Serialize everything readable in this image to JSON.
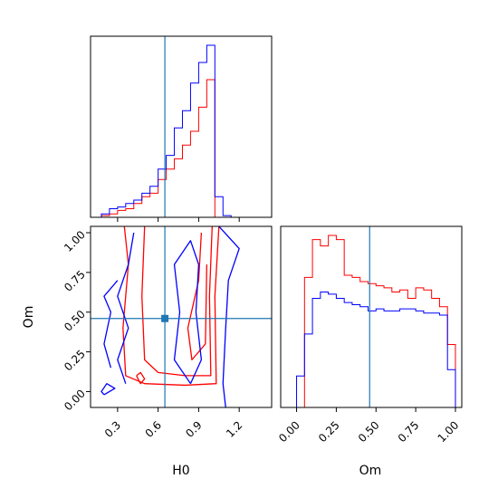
{
  "colors": {
    "red": "#ff0000",
    "blue": "#0000ff",
    "truth": "#1f77b4"
  },
  "chart_data": [
    {
      "type": "histogram",
      "panel": "H0 marginal",
      "xlabel": "",
      "xlim": [
        0.1,
        1.44
      ],
      "xticks": [
        0.3,
        0.6,
        0.9,
        1.2
      ],
      "truth_x": 0.65,
      "bins": [
        0.12,
        0.18,
        0.24,
        0.3,
        0.36,
        0.42,
        0.48,
        0.54,
        0.6,
        0.66,
        0.72,
        0.78,
        0.84,
        0.9,
        0.96,
        1.02,
        1.08,
        1.14,
        1.2
      ],
      "series": [
        {
          "color": "red",
          "heights": [
            0.0,
            0.01,
            0.02,
            0.04,
            0.05,
            0.08,
            0.12,
            0.14,
            0.22,
            0.28,
            0.34,
            0.42,
            0.5,
            0.64,
            0.8,
            0.0,
            0.0,
            0.0
          ]
        },
        {
          "color": "blue",
          "heights": [
            0.0,
            0.02,
            0.05,
            0.06,
            0.08,
            0.1,
            0.14,
            0.18,
            0.28,
            0.36,
            0.52,
            0.62,
            0.78,
            0.9,
            1.0,
            0.12,
            0.01,
            0.0
          ]
        }
      ]
    },
    {
      "type": "contour",
      "panel": "H0 vs Om",
      "xlabel": "H0",
      "ylabel": "Om",
      "xlim": [
        0.1,
        1.44
      ],
      "ylim": [
        -0.1,
        1.04
      ],
      "xticks": [
        0.3,
        0.6,
        0.9,
        1.2
      ],
      "xtick_labels": [
        "0.3",
        "0.6",
        "0.9",
        "1.2"
      ],
      "yticks": [
        0.0,
        0.25,
        0.5,
        0.75,
        1.0
      ],
      "ytick_labels": [
        "0.00",
        "0.25",
        "0.50",
        "0.75",
        "1.00"
      ],
      "truth": [
        0.65,
        0.46
      ],
      "series": [
        {
          "color": "red",
          "contours": [
            [
              [
                1.05,
                1.04
              ],
              [
                1.02,
                0.6
              ],
              [
                1.03,
                0.05
              ],
              [
                0.8,
                0.04
              ],
              [
                0.5,
                0.05
              ],
              [
                0.36,
                0.1
              ],
              [
                0.34,
                0.4
              ],
              [
                0.38,
                0.8
              ],
              [
                0.35,
                1.04
              ]
            ],
            [
              [
                1.0,
                1.04
              ],
              [
                0.98,
                0.6
              ],
              [
                0.99,
                0.1
              ],
              [
                0.8,
                0.1
              ],
              [
                0.6,
                0.12
              ],
              [
                0.5,
                0.2
              ],
              [
                0.48,
                0.6
              ],
              [
                0.5,
                1.04
              ]
            ],
            [
              [
                0.92,
                1.0
              ],
              [
                0.9,
                0.7
              ],
              [
                0.82,
                0.4
              ],
              [
                0.85,
                0.2
              ],
              [
                0.95,
                0.3
              ],
              [
                0.96,
                0.8
              ]
            ],
            [
              [
                0.44,
                0.1
              ],
              [
                0.47,
                0.05
              ],
              [
                0.5,
                0.08
              ],
              [
                0.47,
                0.12
              ],
              [
                0.44,
                0.1
              ]
            ]
          ]
        },
        {
          "color": "blue",
          "contours": [
            [
              [
                1.05,
                1.04
              ],
              [
                1.2,
                0.9
              ],
              [
                1.12,
                0.7
              ],
              [
                1.1,
                0.4
              ],
              [
                1.08,
                0.05
              ],
              [
                1.1,
                -0.1
              ]
            ],
            [
              [
                0.84,
                0.05
              ],
              [
                0.72,
                0.2
              ],
              [
                0.76,
                0.5
              ],
              [
                0.72,
                0.8
              ],
              [
                0.84,
                0.95
              ],
              [
                0.9,
                0.8
              ],
              [
                0.88,
                0.5
              ],
              [
                0.92,
                0.2
              ],
              [
                0.84,
                0.05
              ]
            ],
            [
              [
                0.42,
                1.0
              ],
              [
                0.38,
                0.8
              ],
              [
                0.3,
                0.6
              ],
              [
                0.38,
                0.4
              ],
              [
                0.3,
                0.2
              ],
              [
                0.36,
                0.05
              ]
            ],
            [
              [
                0.3,
                0.7
              ],
              [
                0.2,
                0.6
              ],
              [
                0.25,
                0.5
              ],
              [
                0.2,
                0.3
              ],
              [
                0.25,
                0.15
              ]
            ],
            [
              [
                0.2,
                -0.02
              ],
              [
                0.28,
                0.02
              ],
              [
                0.22,
                0.05
              ],
              [
                0.18,
                0.0
              ],
              [
                0.2,
                -0.02
              ]
            ]
          ]
        }
      ]
    },
    {
      "type": "histogram",
      "panel": "Om marginal",
      "xlabel": "Om",
      "xlim": [
        -0.1,
        1.04
      ],
      "xticks": [
        0.0,
        0.25,
        0.5,
        0.75,
        1.0
      ],
      "xtick_labels": [
        "0.00",
        "0.25",
        "0.50",
        "0.75",
        "1.00"
      ],
      "truth_x": 0.46,
      "bins": [
        -0.05,
        0.0,
        0.05,
        0.1,
        0.15,
        0.2,
        0.25,
        0.3,
        0.35,
        0.4,
        0.45,
        0.5,
        0.55,
        0.6,
        0.65,
        0.7,
        0.75,
        0.8,
        0.85,
        0.9,
        0.95,
        1.0
      ],
      "series": [
        {
          "color": "red",
          "heights": [
            0.0,
            0.0,
            0.62,
            0.8,
            0.77,
            0.82,
            0.8,
            0.63,
            0.62,
            0.6,
            0.59,
            0.58,
            0.57,
            0.55,
            0.56,
            0.52,
            0.57,
            0.56,
            0.52,
            0.48,
            0.3,
            0.0
          ]
        },
        {
          "color": "blue",
          "heights": [
            0.0,
            0.15,
            0.35,
            0.52,
            0.55,
            0.54,
            0.52,
            0.5,
            0.49,
            0.48,
            0.46,
            0.47,
            0.46,
            0.46,
            0.47,
            0.47,
            0.46,
            0.45,
            0.45,
            0.44,
            0.18,
            0.0
          ]
        }
      ]
    }
  ]
}
